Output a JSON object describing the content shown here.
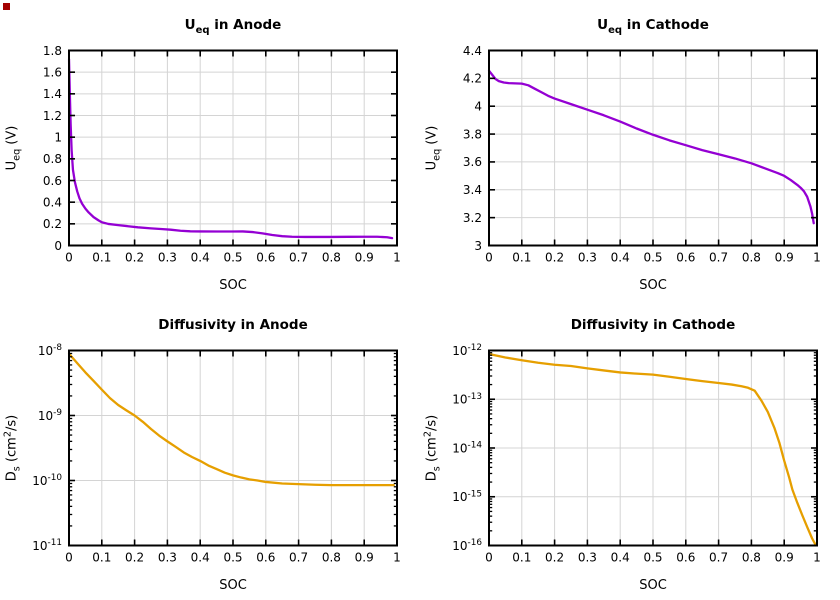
{
  "figure": {
    "background": "#ffffff",
    "grid_color": "#d4d4d4",
    "axis_color": "#000000",
    "text_color": "#000000",
    "corner_marker_color": "#a40000",
    "uv_line_color": "#9400d3",
    "diff_line_color": "#e69f00"
  },
  "chart_data": [
    {
      "id": "ueq-anode",
      "type": "line",
      "title": "U_{eq} in Anode",
      "xlabel": "SOC",
      "ylabel": "U_{eq} (V)",
      "line_color": "#9400d3",
      "grid": true,
      "legend": "none",
      "x": {
        "scale": "linear",
        "min": 0,
        "max": 1,
        "tick_values": [
          0,
          0.1,
          0.2,
          0.3,
          0.4,
          0.5,
          0.6,
          0.7,
          0.8,
          0.9,
          1
        ],
        "tick_labels": [
          "0",
          "0.1",
          "0.2",
          "0.3",
          "0.4",
          "0.5",
          "0.6",
          "0.7",
          "0.8",
          "0.9",
          "1"
        ]
      },
      "y": {
        "scale": "linear",
        "min": 0,
        "max": 1.8,
        "tick_values": [
          0,
          0.2,
          0.4,
          0.6,
          0.8,
          1,
          1.2,
          1.4,
          1.6,
          1.8
        ],
        "tick_labels": [
          "0",
          "0.2",
          "0.4",
          "0.6",
          "0.8",
          "1",
          "1.2",
          "1.4",
          "1.6",
          "1.8"
        ]
      },
      "points": [
        [
          0,
          1.72
        ],
        [
          0.003,
          1.35
        ],
        [
          0.005,
          1.12
        ],
        [
          0.008,
          0.88
        ],
        [
          0.012,
          0.7
        ],
        [
          0.018,
          0.585
        ],
        [
          0.025,
          0.5
        ],
        [
          0.032,
          0.435
        ],
        [
          0.04,
          0.385
        ],
        [
          0.05,
          0.34
        ],
        [
          0.06,
          0.305
        ],
        [
          0.075,
          0.262
        ],
        [
          0.09,
          0.232
        ],
        [
          0.1,
          0.215
        ],
        [
          0.12,
          0.199
        ],
        [
          0.15,
          0.188
        ],
        [
          0.18,
          0.178
        ],
        [
          0.21,
          0.168
        ],
        [
          0.25,
          0.158
        ],
        [
          0.28,
          0.152
        ],
        [
          0.31,
          0.146
        ],
        [
          0.34,
          0.136
        ],
        [
          0.37,
          0.131
        ],
        [
          0.4,
          0.13
        ],
        [
          0.45,
          0.129
        ],
        [
          0.5,
          0.129
        ],
        [
          0.53,
          0.13
        ],
        [
          0.56,
          0.124
        ],
        [
          0.59,
          0.112
        ],
        [
          0.62,
          0.097
        ],
        [
          0.65,
          0.086
        ],
        [
          0.68,
          0.081
        ],
        [
          0.72,
          0.079
        ],
        [
          0.76,
          0.079
        ],
        [
          0.8,
          0.079
        ],
        [
          0.85,
          0.08
        ],
        [
          0.9,
          0.081
        ],
        [
          0.94,
          0.081
        ],
        [
          0.97,
          0.076
        ],
        [
          0.985,
          0.068
        ]
      ]
    },
    {
      "id": "ueq-cathode",
      "type": "line",
      "title": "U_{eq} in Cathode",
      "xlabel": "SOC",
      "ylabel": "U_{eq} (V)",
      "line_color": "#9400d3",
      "grid": true,
      "legend": "none",
      "x": {
        "scale": "linear",
        "min": 0,
        "max": 1,
        "tick_values": [
          0,
          0.1,
          0.2,
          0.3,
          0.4,
          0.5,
          0.6,
          0.7,
          0.8,
          0.9,
          1
        ],
        "tick_labels": [
          "0",
          "0.1",
          "0.2",
          "0.3",
          "0.4",
          "0.5",
          "0.6",
          "0.7",
          "0.8",
          "0.9",
          "1"
        ]
      },
      "y": {
        "scale": "linear",
        "min": 3,
        "max": 4.4,
        "tick_values": [
          3,
          3.2,
          3.4,
          3.6,
          3.8,
          4,
          4.2,
          4.4
        ],
        "tick_labels": [
          "3",
          "3.2",
          "3.4",
          "3.6",
          "3.8",
          "4",
          "4.2",
          "4.4"
        ]
      },
      "points": [
        [
          0,
          4.255
        ],
        [
          0.005,
          4.24
        ],
        [
          0.01,
          4.225
        ],
        [
          0.02,
          4.195
        ],
        [
          0.03,
          4.18
        ],
        [
          0.045,
          4.17
        ],
        [
          0.06,
          4.166
        ],
        [
          0.08,
          4.164
        ],
        [
          0.1,
          4.162
        ],
        [
          0.12,
          4.15
        ],
        [
          0.14,
          4.125
        ],
        [
          0.16,
          4.1
        ],
        [
          0.18,
          4.075
        ],
        [
          0.2,
          4.055
        ],
        [
          0.25,
          4.015
        ],
        [
          0.3,
          3.975
        ],
        [
          0.35,
          3.935
        ],
        [
          0.4,
          3.89
        ],
        [
          0.45,
          3.84
        ],
        [
          0.5,
          3.795
        ],
        [
          0.55,
          3.755
        ],
        [
          0.6,
          3.72
        ],
        [
          0.65,
          3.685
        ],
        [
          0.7,
          3.655
        ],
        [
          0.75,
          3.625
        ],
        [
          0.8,
          3.59
        ],
        [
          0.84,
          3.555
        ],
        [
          0.88,
          3.52
        ],
        [
          0.9,
          3.5
        ],
        [
          0.92,
          3.47
        ],
        [
          0.94,
          3.435
        ],
        [
          0.95,
          3.415
        ],
        [
          0.96,
          3.39
        ],
        [
          0.97,
          3.35
        ],
        [
          0.98,
          3.28
        ],
        [
          0.985,
          3.23
        ],
        [
          0.99,
          3.16
        ]
      ]
    },
    {
      "id": "diffusivity-anode",
      "type": "line",
      "title": "Diffusivity in Anode",
      "xlabel": "SOC",
      "ylabel": "D_{s} (cm^{2}/s)",
      "line_color": "#e69f00",
      "grid": true,
      "legend": "none",
      "x": {
        "scale": "linear",
        "min": 0,
        "max": 1,
        "tick_values": [
          0,
          0.1,
          0.2,
          0.3,
          0.4,
          0.5,
          0.6,
          0.7,
          0.8,
          0.9,
          1
        ],
        "tick_labels": [
          "0",
          "0.1",
          "0.2",
          "0.3",
          "0.4",
          "0.5",
          "0.6",
          "0.7",
          "0.8",
          "0.9",
          "1"
        ]
      },
      "y": {
        "scale": "log",
        "min": 1e-11,
        "max": 1e-08,
        "tick_values": [
          1e-11,
          1e-10,
          1e-09,
          1e-08
        ],
        "tick_labels": [
          "10^{-11}",
          "10^{-10}",
          "10^{-9}",
          "10^{-8}"
        ]
      },
      "points": [
        [
          0,
          8.9e-09
        ],
        [
          0.025,
          6.4e-09
        ],
        [
          0.05,
          4.6e-09
        ],
        [
          0.075,
          3.4e-09
        ],
        [
          0.1,
          2.5e-09
        ],
        [
          0.125,
          1.85e-09
        ],
        [
          0.15,
          1.45e-09
        ],
        [
          0.175,
          1.2e-09
        ],
        [
          0.2,
          1e-09
        ],
        [
          0.225,
          8e-10
        ],
        [
          0.25,
          6.2e-10
        ],
        [
          0.275,
          4.9e-10
        ],
        [
          0.3,
          4e-10
        ],
        [
          0.325,
          3.3e-10
        ],
        [
          0.35,
          2.7e-10
        ],
        [
          0.375,
          2.3e-10
        ],
        [
          0.4,
          2e-10
        ],
        [
          0.425,
          1.7e-10
        ],
        [
          0.45,
          1.5e-10
        ],
        [
          0.475,
          1.32e-10
        ],
        [
          0.5,
          1.2e-10
        ],
        [
          0.525,
          1.11e-10
        ],
        [
          0.55,
          1.04e-10
        ],
        [
          0.575,
          1e-10
        ],
        [
          0.6,
          9.5e-11
        ],
        [
          0.65,
          9e-11
        ],
        [
          0.7,
          8.8e-11
        ],
        [
          0.75,
          8.6e-11
        ],
        [
          0.8,
          8.5e-11
        ],
        [
          0.85,
          8.5e-11
        ],
        [
          0.9,
          8.5e-11
        ],
        [
          0.95,
          8.5e-11
        ],
        [
          0.99,
          8.5e-11
        ]
      ]
    },
    {
      "id": "diffusivity-cathode",
      "type": "line",
      "title": "Diffusivity in Cathode",
      "xlabel": "SOC",
      "ylabel": "D_{s} (cm^{2}/s)",
      "line_color": "#e69f00",
      "grid": true,
      "legend": "none",
      "x": {
        "scale": "linear",
        "min": 0,
        "max": 1,
        "tick_values": [
          0,
          0.1,
          0.2,
          0.3,
          0.4,
          0.5,
          0.6,
          0.7,
          0.8,
          0.9,
          1
        ],
        "tick_labels": [
          "0",
          "0.1",
          "0.2",
          "0.3",
          "0.4",
          "0.5",
          "0.6",
          "0.7",
          "0.8",
          "0.9",
          "1"
        ]
      },
      "y": {
        "scale": "log",
        "min": 1e-16,
        "max": 1e-12,
        "tick_values": [
          1e-16,
          1e-15,
          1e-14,
          1e-13,
          1e-12
        ],
        "tick_labels": [
          "10^{-16}",
          "10^{-15}",
          "10^{-14}",
          "10^{-13}",
          "10^{-12}"
        ]
      },
      "points": [
        [
          0,
          8.5e-13
        ],
        [
          0.05,
          7.2e-13
        ],
        [
          0.1,
          6.3e-13
        ],
        [
          0.15,
          5.6e-13
        ],
        [
          0.2,
          5.1e-13
        ],
        [
          0.25,
          4.8e-13
        ],
        [
          0.3,
          4.3e-13
        ],
        [
          0.35,
          3.9e-13
        ],
        [
          0.4,
          3.55e-13
        ],
        [
          0.45,
          3.35e-13
        ],
        [
          0.5,
          3.2e-13
        ],
        [
          0.55,
          2.9e-13
        ],
        [
          0.6,
          2.6e-13
        ],
        [
          0.65,
          2.35e-13
        ],
        [
          0.7,
          2.15e-13
        ],
        [
          0.74,
          2e-13
        ],
        [
          0.77,
          1.85e-13
        ],
        [
          0.79,
          1.72e-13
        ],
        [
          0.81,
          1.5e-13
        ],
        [
          0.83,
          9.5e-14
        ],
        [
          0.85,
          5.5e-14
        ],
        [
          0.87,
          2.6e-14
        ],
        [
          0.885,
          1.3e-14
        ],
        [
          0.9,
          5.5e-15
        ],
        [
          0.915,
          2.5e-15
        ],
        [
          0.925,
          1.4e-15
        ],
        [
          0.94,
          7.5e-16
        ],
        [
          0.955,
          4.2e-16
        ],
        [
          0.97,
          2.4e-16
        ],
        [
          0.985,
          1.4e-16
        ],
        [
          0.995,
          1.05e-16
        ]
      ]
    }
  ]
}
